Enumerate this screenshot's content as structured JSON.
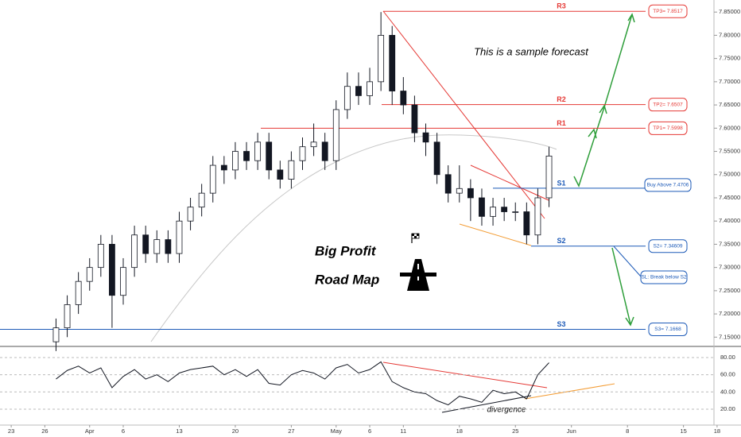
{
  "chart_data": {
    "type": "candlestick",
    "candle_up_color": "#ffffff",
    "candle_down_color": "#131722",
    "x": [
      4,
      5,
      6,
      7,
      8,
      9,
      10,
      11,
      12,
      13,
      14,
      15,
      16,
      17,
      18,
      19,
      20,
      21,
      22,
      23,
      24,
      25,
      26,
      27,
      28,
      29,
      30,
      31,
      32,
      33,
      34,
      35,
      36,
      37,
      38,
      39,
      40,
      41,
      42,
      43,
      44,
      45,
      46,
      47,
      48
    ],
    "open": [
      7.14,
      7.17,
      7.22,
      7.27,
      7.3,
      7.35,
      7.24,
      7.3,
      7.37,
      7.33,
      7.36,
      7.33,
      7.4,
      7.43,
      7.46,
      7.52,
      7.51,
      7.55,
      7.53,
      7.57,
      7.51,
      7.49,
      7.53,
      7.56,
      7.57,
      7.53,
      7.64,
      7.69,
      7.67,
      7.7,
      7.8,
      7.68,
      7.65,
      7.59,
      7.57,
      7.5,
      7.46,
      7.47,
      7.45,
      7.41,
      7.43,
      7.42,
      7.42,
      7.37,
      7.45
    ],
    "high": [
      7.19,
      7.24,
      7.29,
      7.32,
      7.37,
      7.37,
      7.32,
      7.39,
      7.39,
      7.38,
      7.38,
      7.42,
      7.45,
      7.48,
      7.54,
      7.54,
      7.57,
      7.57,
      7.59,
      7.59,
      7.53,
      7.55,
      7.58,
      7.61,
      7.59,
      7.66,
      7.72,
      7.72,
      7.73,
      7.85,
      7.82,
      7.71,
      7.67,
      7.61,
      7.59,
      7.52,
      7.52,
      7.49,
      7.47,
      7.45,
      7.45,
      7.44,
      7.44,
      7.47,
      7.56
    ],
    "low": [
      7.12,
      7.15,
      7.2,
      7.25,
      7.28,
      7.17,
      7.22,
      7.28,
      7.31,
      7.31,
      7.31,
      7.31,
      7.38,
      7.41,
      7.44,
      7.48,
      7.49,
      7.51,
      7.51,
      7.49,
      7.47,
      7.47,
      7.51,
      7.54,
      7.51,
      7.51,
      7.62,
      7.65,
      7.65,
      7.68,
      7.65,
      7.63,
      7.57,
      7.54,
      7.48,
      7.44,
      7.44,
      7.4,
      7.39,
      7.39,
      7.4,
      7.4,
      7.35,
      7.35,
      7.43
    ],
    "close": [
      7.17,
      7.22,
      7.27,
      7.3,
      7.35,
      7.24,
      7.3,
      7.37,
      7.33,
      7.36,
      7.33,
      7.4,
      7.43,
      7.46,
      7.52,
      7.51,
      7.55,
      7.53,
      7.57,
      7.51,
      7.49,
      7.53,
      7.56,
      7.57,
      7.53,
      7.64,
      7.69,
      7.67,
      7.7,
      7.8,
      7.68,
      7.65,
      7.59,
      7.57,
      7.5,
      7.46,
      7.47,
      7.45,
      7.41,
      7.43,
      7.42,
      7.42,
      7.37,
      7.45,
      7.54
    ],
    "rsi": {
      "color": "#131722",
      "values": [
        55,
        65,
        70,
        62,
        68,
        45,
        58,
        66,
        55,
        60,
        52,
        62,
        66,
        68,
        70,
        60,
        66,
        58,
        66,
        50,
        48,
        60,
        65,
        62,
        55,
        68,
        72,
        62,
        66,
        75,
        52,
        45,
        40,
        38,
        30,
        25,
        35,
        32,
        28,
        42,
        38,
        40,
        32,
        60,
        74
      ]
    },
    "xlim": [
      -1,
      64
    ],
    "ylim": [
      7.13,
      7.876
    ],
    "y2lim": [
      1.5,
      92
    ],
    "xticks": [
      {
        "value": 0,
        "label": "23"
      },
      {
        "value": 3,
        "label": "26"
      },
      {
        "value": 7,
        "label": "Apr"
      },
      {
        "value": 10,
        "label": "6"
      },
      {
        "value": 15,
        "label": "13"
      },
      {
        "value": 20,
        "label": "20"
      },
      {
        "value": 25,
        "label": "27"
      },
      {
        "value": 29,
        "label": "May"
      },
      {
        "value": 32,
        "label": "6"
      },
      {
        "value": 35,
        "label": "11"
      },
      {
        "value": 40,
        "label": "18"
      },
      {
        "value": 45,
        "label": "25"
      },
      {
        "value": 50,
        "label": "Jun"
      },
      {
        "value": 55,
        "label": "8"
      },
      {
        "value": 60,
        "label": "15"
      },
      {
        "value": 63,
        "label": "18"
      }
    ],
    "yticks": [
      {
        "value": 7.15,
        "label": "7.15000"
      },
      {
        "value": 7.2,
        "label": "7.20000"
      },
      {
        "value": 7.25,
        "label": "7.25000"
      },
      {
        "value": 7.3,
        "label": "7.30000"
      },
      {
        "value": 7.35,
        "label": "7.35000"
      },
      {
        "value": 7.4,
        "label": "7.40000"
      },
      {
        "value": 7.45,
        "label": "7.45000"
      },
      {
        "value": 7.5,
        "label": "7.50000"
      },
      {
        "value": 7.55,
        "label": "7.55000"
      },
      {
        "value": 7.6,
        "label": "7.60000"
      },
      {
        "value": 7.65,
        "label": "7.65000"
      },
      {
        "value": 7.7,
        "label": "7.70000"
      },
      {
        "value": 7.75,
        "label": "7.75000"
      },
      {
        "value": 7.8,
        "label": "7.80000"
      },
      {
        "value": 7.85,
        "label": "7.85000"
      }
    ],
    "y2ticks": [
      {
        "value": 80,
        "label": "80.00"
      },
      {
        "value": 60,
        "label": "60.00"
      },
      {
        "value": 40,
        "label": "40.00"
      },
      {
        "value": 20,
        "label": "20.00"
      }
    ],
    "levels": [
      {
        "name": "R3",
        "value": 7.8517,
        "label": "TP3= 7.8517",
        "color": "#e53935"
      },
      {
        "name": "R2",
        "value": 7.6507,
        "label": "TP2= 7.6507",
        "color": "#e53935"
      },
      {
        "name": "R1",
        "value": 7.5998,
        "label": "TP1= 7.5998",
        "color": "#e53935"
      },
      {
        "name": "S1",
        "value": 7.4706,
        "label": "Buy Above 7.4706",
        "color": "#1e5bb8"
      },
      {
        "name": "S2",
        "value": 7.34609,
        "label": "S2= 7.34609",
        "color": "#1e5bb8"
      },
      {
        "name": "S3",
        "value": 7.1668,
        "label": "S3= 7.1668",
        "color": "#1e5bb8"
      }
    ],
    "sl_label": "SL: Break below S2",
    "forecast_note": "This is a sample forecast",
    "headline_1": "Big Profit",
    "headline_2": "Road Map",
    "divergence_label": "divergence"
  }
}
